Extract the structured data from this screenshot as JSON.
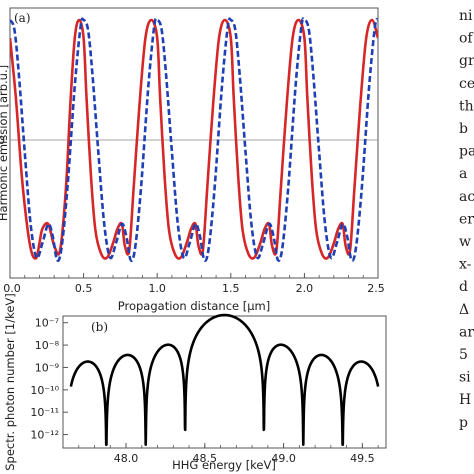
{
  "side_text": [
    "ni",
    "of",
    "gr",
    "ce",
    "th",
    "b",
    "pa",
    "a",
    "ac",
    "er",
    "w",
    "x-",
    "d",
    "Δ",
    "ar",
    "5",
    "si",
    "H",
    "p"
  ],
  "chart_data": [
    {
      "type": "line",
      "panel_label": "(a)",
      "xlabel": "Propagation distance [μm]",
      "ylabel": "Harmonic emission [arb.u.]",
      "xlim": [
        0,
        2.5
      ],
      "ylim": [
        -1.15,
        1.1
      ],
      "xticks": [
        "0.0",
        "0.5",
        "1.0",
        "1.5",
        "2.0",
        "2.5"
      ],
      "yticks": [
        "0"
      ],
      "grid": false,
      "zero_line": true,
      "series": [
        {
          "style": "solid",
          "color": "#d62728",
          "x": [
            0.0,
            0.04,
            0.08,
            0.12,
            0.15,
            0.18,
            0.2,
            0.22,
            0.26,
            0.3,
            0.34,
            0.38,
            0.41,
            0.44,
            0.47,
            0.5,
            0.52,
            0.55,
            0.58,
            0.62,
            0.66,
            0.7,
            0.73,
            0.76,
            0.78,
            0.81,
            0.84,
            0.88,
            0.92,
            0.96,
            1.0,
            1.02,
            1.05,
            1.08,
            1.12,
            1.16,
            1.2,
            1.23,
            1.26,
            1.28,
            1.31,
            1.34,
            1.38,
            1.42,
            1.46,
            1.5,
            1.52,
            1.55,
            1.58,
            1.62,
            1.66,
            1.7,
            1.73,
            1.76,
            1.78,
            1.81,
            1.84,
            1.88,
            1.92,
            1.96,
            2.0,
            2.02,
            2.05,
            2.08,
            2.12,
            2.16,
            2.2,
            2.23,
            2.26,
            2.28,
            2.31,
            2.34,
            2.38,
            2.42,
            2.46,
            2.5
          ],
          "y": [
            0.85,
            0.35,
            -0.3,
            -0.75,
            -0.95,
            -0.98,
            -0.86,
            -0.74,
            -0.7,
            -0.88,
            -0.92,
            -0.4,
            0.3,
            0.85,
            1.0,
            0.85,
            0.35,
            -0.3,
            -0.75,
            -0.95,
            -0.98,
            -0.86,
            -0.74,
            -0.7,
            -0.88,
            -0.92,
            -0.4,
            0.3,
            0.85,
            1.0,
            0.85,
            0.35,
            -0.3,
            -0.75,
            -0.95,
            -0.98,
            -0.86,
            -0.74,
            -0.7,
            -0.88,
            -0.92,
            -0.4,
            0.3,
            0.85,
            1.0,
            0.85,
            0.35,
            -0.3,
            -0.75,
            -0.95,
            -0.98,
            -0.86,
            -0.74,
            -0.7,
            -0.88,
            -0.92,
            -0.4,
            0.3,
            0.85,
            1.0,
            0.85,
            0.35,
            -0.3,
            -0.75,
            -0.95,
            -0.98,
            -0.86,
            -0.74,
            -0.7,
            -0.88,
            -0.92,
            -0.4,
            0.3,
            0.85,
            1.0,
            0.85
          ]
        },
        {
          "style": "dashed",
          "color": "#1f3fb4",
          "x": [
            0.0,
            0.03,
            0.06,
            0.1,
            0.14,
            0.18,
            0.22,
            0.26,
            0.29,
            0.32,
            0.35,
            0.39,
            0.44,
            0.48,
            0.5,
            0.53,
            0.56,
            0.6,
            0.64,
            0.68,
            0.72,
            0.76,
            0.79,
            0.82,
            0.85,
            0.89,
            0.94,
            0.98,
            1.0,
            1.03,
            1.06,
            1.1,
            1.14,
            1.18,
            1.22,
            1.26,
            1.29,
            1.32,
            1.35,
            1.39,
            1.44,
            1.48,
            1.5,
            1.53,
            1.56,
            1.6,
            1.64,
            1.68,
            1.72,
            1.76,
            1.79,
            1.82,
            1.85,
            1.89,
            1.94,
            1.98,
            2.0,
            2.03,
            2.06,
            2.1,
            2.14,
            2.18,
            2.22,
            2.26,
            2.29,
            2.32,
            2.35,
            2.39,
            2.44,
            2.48,
            2.5
          ],
          "y": [
            1.0,
            0.92,
            0.55,
            -0.1,
            -0.7,
            -0.98,
            -0.86,
            -0.7,
            -0.8,
            -1.0,
            -0.9,
            -0.4,
            0.45,
            0.95,
            1.0,
            0.92,
            0.55,
            -0.1,
            -0.7,
            -0.98,
            -0.86,
            -0.7,
            -0.8,
            -1.0,
            -0.9,
            -0.4,
            0.45,
            0.95,
            1.0,
            0.92,
            0.55,
            -0.1,
            -0.7,
            -0.98,
            -0.86,
            -0.7,
            -0.8,
            -1.0,
            -0.9,
            -0.4,
            0.45,
            0.95,
            1.0,
            0.92,
            0.55,
            -0.1,
            -0.7,
            -0.98,
            -0.86,
            -0.7,
            -0.8,
            -1.0,
            -0.9,
            -0.4,
            0.45,
            0.95,
            1.0,
            0.92,
            0.55,
            -0.1,
            -0.7,
            -0.98,
            -0.86,
            -0.7,
            -0.8,
            -1.0,
            -0.9,
            -0.4,
            0.45,
            0.95,
            1.0
          ]
        }
      ]
    },
    {
      "type": "line",
      "panel_label": "(b)",
      "xlabel": "HHG energy [keV]",
      "ylabel": "Spectr. photon number [1/keV]",
      "xlim": [
        47.6,
        49.65
      ],
      "ylim_log10": [
        -12.6,
        -6.7
      ],
      "yscale": "log",
      "xticks": [
        "48.0",
        "48.5",
        "49.0",
        "49.5"
      ],
      "yticks": [
        "10⁻⁷",
        "10⁻⁸",
        "10⁻⁹",
        "10⁻¹⁰",
        "10⁻¹¹",
        "10⁻¹²"
      ],
      "grid": false,
      "series": [
        {
          "style": "solid",
          "color": "#000000",
          "center": 48.625,
          "peak": 2.2e-07,
          "null_spacing": 0.25,
          "x_range": [
            47.65,
            49.6
          ],
          "nulls": [
            47.875,
            48.125,
            48.375,
            48.875,
            49.125,
            49.375
          ]
        }
      ]
    }
  ]
}
